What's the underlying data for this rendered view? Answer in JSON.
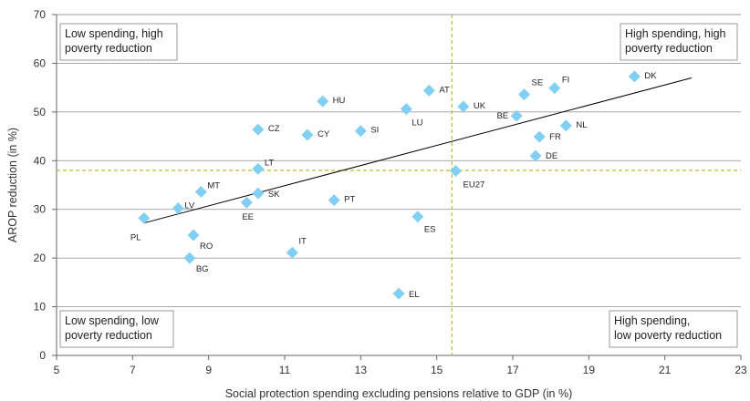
{
  "chart_data": {
    "type": "scatter",
    "xlabel": "Social protection spending excluding pensions relative to GDP (in %)",
    "ylabel": "AROP reduction (in %)",
    "xlim": [
      5,
      23
    ],
    "ylim": [
      0,
      70
    ],
    "x_ticks": [
      5,
      7,
      9,
      11,
      13,
      15,
      17,
      19,
      21,
      23
    ],
    "y_ticks": [
      0,
      10,
      20,
      30,
      40,
      50,
      60,
      70
    ],
    "grid": "horizontal",
    "marker_color": "#82CFF4",
    "trendline": {
      "x": [
        7.3,
        21.7
      ],
      "y": [
        27.2,
        57.0
      ],
      "color": "#000000"
    },
    "reference_lines": {
      "x": 15.4,
      "y": 38.0,
      "color": "#B5C132"
    },
    "points": [
      {
        "label": "PL",
        "x": 7.3,
        "y": 28.2
      },
      {
        "label": "LV",
        "x": 8.2,
        "y": 30.2
      },
      {
        "label": "MT",
        "x": 8.8,
        "y": 33.6
      },
      {
        "label": "RO",
        "x": 8.6,
        "y": 24.7
      },
      {
        "label": "BG",
        "x": 8.5,
        "y": 20.0
      },
      {
        "label": "EE",
        "x": 10.0,
        "y": 31.4
      },
      {
        "label": "SK",
        "x": 10.3,
        "y": 33.3
      },
      {
        "label": "LT",
        "x": 10.3,
        "y": 38.3
      },
      {
        "label": "CZ",
        "x": 10.3,
        "y": 46.4
      },
      {
        "label": "IT",
        "x": 11.2,
        "y": 21.1
      },
      {
        "label": "CY",
        "x": 11.6,
        "y": 45.3
      },
      {
        "label": "HU",
        "x": 12.0,
        "y": 52.2
      },
      {
        "label": "PT",
        "x": 12.3,
        "y": 31.9
      },
      {
        "label": "SI",
        "x": 13.0,
        "y": 46.1
      },
      {
        "label": "EL",
        "x": 14.0,
        "y": 12.7
      },
      {
        "label": "LU",
        "x": 14.2,
        "y": 50.6
      },
      {
        "label": "ES",
        "x": 14.5,
        "y": 28.5
      },
      {
        "label": "AT",
        "x": 14.8,
        "y": 54.4
      },
      {
        "label": "EU27",
        "x": 15.5,
        "y": 37.9
      },
      {
        "label": "UK",
        "x": 15.7,
        "y": 51.1
      },
      {
        "label": "BE",
        "x": 17.1,
        "y": 49.2
      },
      {
        "label": "SE",
        "x": 17.3,
        "y": 53.6
      },
      {
        "label": "DE",
        "x": 17.6,
        "y": 41.0
      },
      {
        "label": "FR",
        "x": 17.7,
        "y": 44.9
      },
      {
        "label": "FI",
        "x": 18.1,
        "y": 54.9
      },
      {
        "label": "NL",
        "x": 18.4,
        "y": 47.2
      },
      {
        "label": "DK",
        "x": 20.2,
        "y": 57.3
      }
    ],
    "quadrant_labels": [
      {
        "position": "top-left",
        "lines": [
          "Low spending, high",
          "poverty reduction"
        ]
      },
      {
        "position": "top-right",
        "lines": [
          "High spending, high",
          "poverty reduction"
        ]
      },
      {
        "position": "bottom-left",
        "lines": [
          "Low spending, low",
          "poverty reduction"
        ]
      },
      {
        "position": "bottom-right",
        "lines": [
          "High spending,",
          "low poverty reduction"
        ]
      }
    ]
  }
}
